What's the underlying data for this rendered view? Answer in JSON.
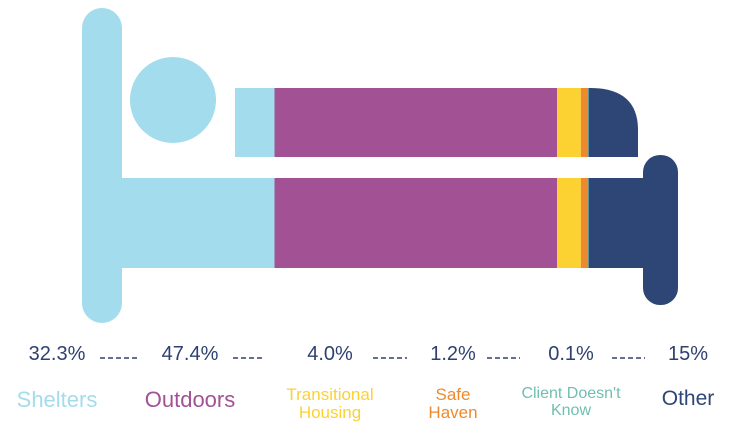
{
  "chart_data": {
    "type": "bed-stacked-bar",
    "categories": [
      "Shelters",
      "Outdoors",
      "Transitional Housing",
      "Safe Haven",
      "Client Doesn't Know",
      "Other"
    ],
    "values": [
      32.3,
      47.4,
      4.0,
      1.2,
      0.1,
      15
    ],
    "value_labels": [
      "32.3%",
      "47.4%",
      "4.0%",
      "1.2%",
      "0.1%",
      "15%"
    ],
    "colors": [
      "#a3dcec",
      "#a25195",
      "#fcd232",
      "#ee8a2e",
      "#6fbfb0",
      "#2e4676"
    ]
  }
}
